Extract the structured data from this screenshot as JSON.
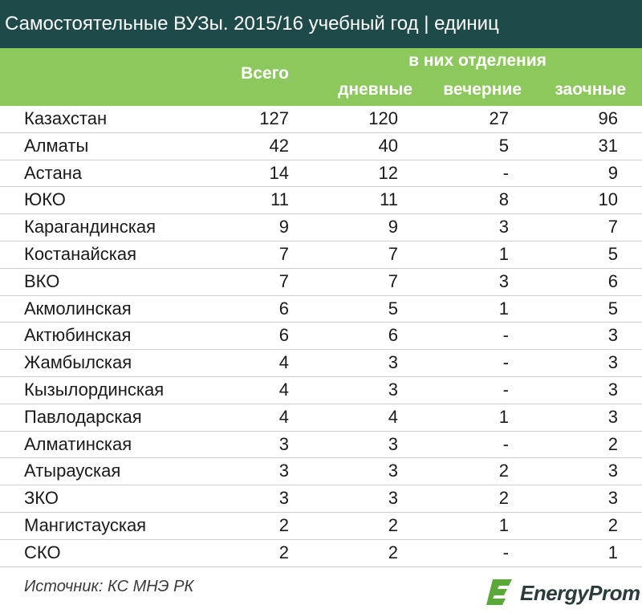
{
  "title": "Самостоятельные ВУЗы. 2015/16 учебный год | единиц",
  "header": {
    "total": "Всего",
    "group": "в них отделения",
    "day": "дневные",
    "evening": "вечерние",
    "correspondence": "заочные"
  },
  "rows": [
    {
      "name": "Казахстан",
      "total": "127",
      "day": "120",
      "evening": "27",
      "corr": "96"
    },
    {
      "name": "Алматы",
      "total": "42",
      "day": "40",
      "evening": "5",
      "corr": "31"
    },
    {
      "name": "Астана",
      "total": "14",
      "day": "12",
      "evening": "-",
      "corr": "9"
    },
    {
      "name": "ЮКО",
      "total": "11",
      "day": "11",
      "evening": "8",
      "corr": "10"
    },
    {
      "name": "Карагандинская",
      "total": "9",
      "day": "9",
      "evening": "3",
      "corr": "7"
    },
    {
      "name": "Костанайская",
      "total": "7",
      "day": "7",
      "evening": "1",
      "corr": "5"
    },
    {
      "name": "ВКО",
      "total": "7",
      "day": "7",
      "evening": "3",
      "corr": "6"
    },
    {
      "name": "Акмолинская",
      "total": "6",
      "day": "5",
      "evening": "1",
      "corr": "5"
    },
    {
      "name": "Актюбинская",
      "total": "6",
      "day": "6",
      "evening": "-",
      "corr": "3"
    },
    {
      "name": "Жамбылская",
      "total": "4",
      "day": "3",
      "evening": "-",
      "corr": "3"
    },
    {
      "name": "Кызылординская",
      "total": "4",
      "day": "3",
      "evening": "-",
      "corr": "3"
    },
    {
      "name": "Павлодарская",
      "total": "4",
      "day": "4",
      "evening": "1",
      "corr": "3"
    },
    {
      "name": "Алматинская",
      "total": "3",
      "day": "3",
      "evening": "-",
      "corr": "2"
    },
    {
      "name": "Атырауская",
      "total": "3",
      "day": "3",
      "evening": "2",
      "corr": "3"
    },
    {
      "name": "ЗКО",
      "total": "3",
      "day": "3",
      "evening": "2",
      "corr": "3"
    },
    {
      "name": "Мангистауская",
      "total": "2",
      "day": "2",
      "evening": "1",
      "corr": "2"
    },
    {
      "name": "СКО",
      "total": "2",
      "day": "2",
      "evening": "-",
      "corr": "1"
    }
  ],
  "footer": {
    "source": "Источник: КС МНЭ РК",
    "logo_text": "EnergyProm",
    "logo_icon": "energyprom-logo-icon"
  },
  "colors": {
    "title_bg": "#1f4a4a",
    "header_bg": "#8dc85c",
    "logo_green": "#5aa83a"
  }
}
